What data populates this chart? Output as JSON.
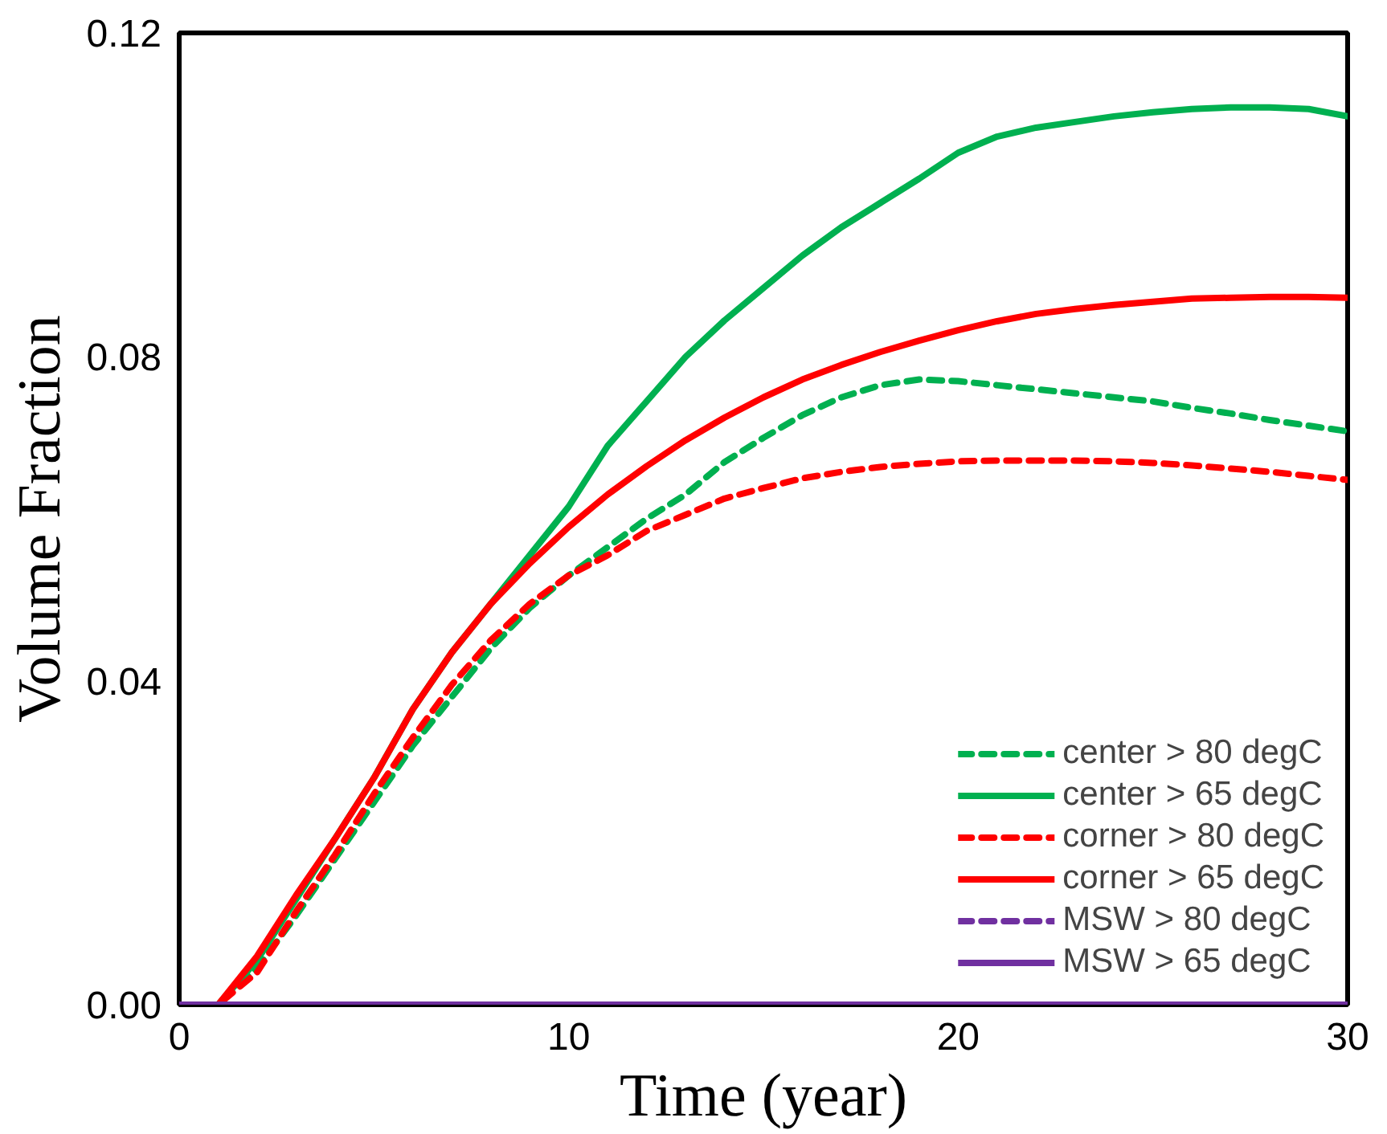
{
  "chart_data": {
    "type": "line",
    "xlabel": "Time (year)",
    "ylabel": "Volume Fraction",
    "xlim": [
      0,
      30
    ],
    "ylim": [
      0,
      0.12
    ],
    "xticks": [
      0,
      10,
      20,
      30
    ],
    "yticks": [
      {
        "value": 0,
        "label": "0.00"
      },
      {
        "value": 0.04,
        "label": "0.04"
      },
      {
        "value": 0.08,
        "label": "0.08"
      },
      {
        "value": 0.12,
        "label": "0.12"
      }
    ],
    "grid": false,
    "legend": "bottom right",
    "marker": "none",
    "x": [
      0,
      1,
      2,
      3,
      4,
      5,
      6,
      7,
      8,
      9,
      10,
      11,
      12,
      13,
      14,
      15,
      16,
      17,
      18,
      19,
      20,
      21,
      22,
      23,
      24,
      25,
      26,
      27,
      28,
      29,
      30
    ],
    "series": [
      {
        "name": "center > 80 degC",
        "color": "#00b050",
        "line_style": "dashed",
        "values": [
          0,
          0,
          0.0045,
          0.011,
          0.018,
          0.025,
          0.032,
          0.038,
          0.044,
          0.049,
          0.053,
          0.0565,
          0.06,
          0.063,
          0.067,
          0.07,
          0.0728,
          0.075,
          0.0765,
          0.0772,
          0.077,
          0.0765,
          0.076,
          0.0755,
          0.075,
          0.0745,
          0.0737,
          0.073,
          0.0722,
          0.0715,
          0.0708
        ]
      },
      {
        "name": "center > 65 degC",
        "color": "#00b050",
        "line_style": "solid",
        "values": [
          0,
          0,
          0.0055,
          0.013,
          0.0205,
          0.028,
          0.0365,
          0.0435,
          0.0495,
          0.0555,
          0.0615,
          0.069,
          0.0745,
          0.08,
          0.0845,
          0.0885,
          0.0925,
          0.096,
          0.099,
          0.102,
          0.1052,
          0.1072,
          0.1083,
          0.109,
          0.1097,
          0.1102,
          0.1106,
          0.1108,
          0.1108,
          0.1106,
          0.1097
        ]
      },
      {
        "name": "corner > 80 degC",
        "color": "#ff0000",
        "line_style": "dashed",
        "values": [
          0,
          0,
          0.004,
          0.0115,
          0.0185,
          0.026,
          0.033,
          0.0395,
          0.045,
          0.0495,
          0.053,
          0.0555,
          0.0585,
          0.0605,
          0.0625,
          0.0638,
          0.065,
          0.0658,
          0.0664,
          0.0668,
          0.0671,
          0.0672,
          0.0672,
          0.0672,
          0.0671,
          0.0669,
          0.0666,
          0.0662,
          0.0658,
          0.0653,
          0.0648
        ]
      },
      {
        "name": "corner > 65 degC",
        "color": "#ff0000",
        "line_style": "solid",
        "values": [
          0,
          0,
          0.006,
          0.0135,
          0.0205,
          0.028,
          0.0365,
          0.0435,
          0.0495,
          0.0545,
          0.059,
          0.063,
          0.0665,
          0.0697,
          0.0725,
          0.075,
          0.0772,
          0.079,
          0.0806,
          0.082,
          0.0833,
          0.0844,
          0.0853,
          0.0859,
          0.0864,
          0.0868,
          0.0872,
          0.0873,
          0.0874,
          0.0874,
          0.0873
        ]
      },
      {
        "name": "MSW > 80 degC",
        "color": "#7030a0",
        "line_style": "dashed",
        "values": [
          null,
          null,
          null,
          null,
          null,
          null,
          null,
          null,
          null,
          null,
          null,
          null,
          null,
          null,
          null,
          null,
          null,
          null,
          null,
          null,
          null,
          null,
          null,
          null,
          null,
          null,
          null,
          null,
          null,
          null,
          null
        ]
      },
      {
        "name": "MSW > 65 degC",
        "color": "#7030a0",
        "line_style": "solid",
        "values": [
          0,
          0,
          0,
          0,
          0,
          0,
          0,
          0,
          0,
          0,
          0,
          0,
          0,
          0,
          0,
          0,
          0,
          0,
          0,
          0,
          0,
          0,
          0,
          0,
          0,
          0,
          0,
          0,
          0,
          0,
          0
        ]
      }
    ]
  }
}
